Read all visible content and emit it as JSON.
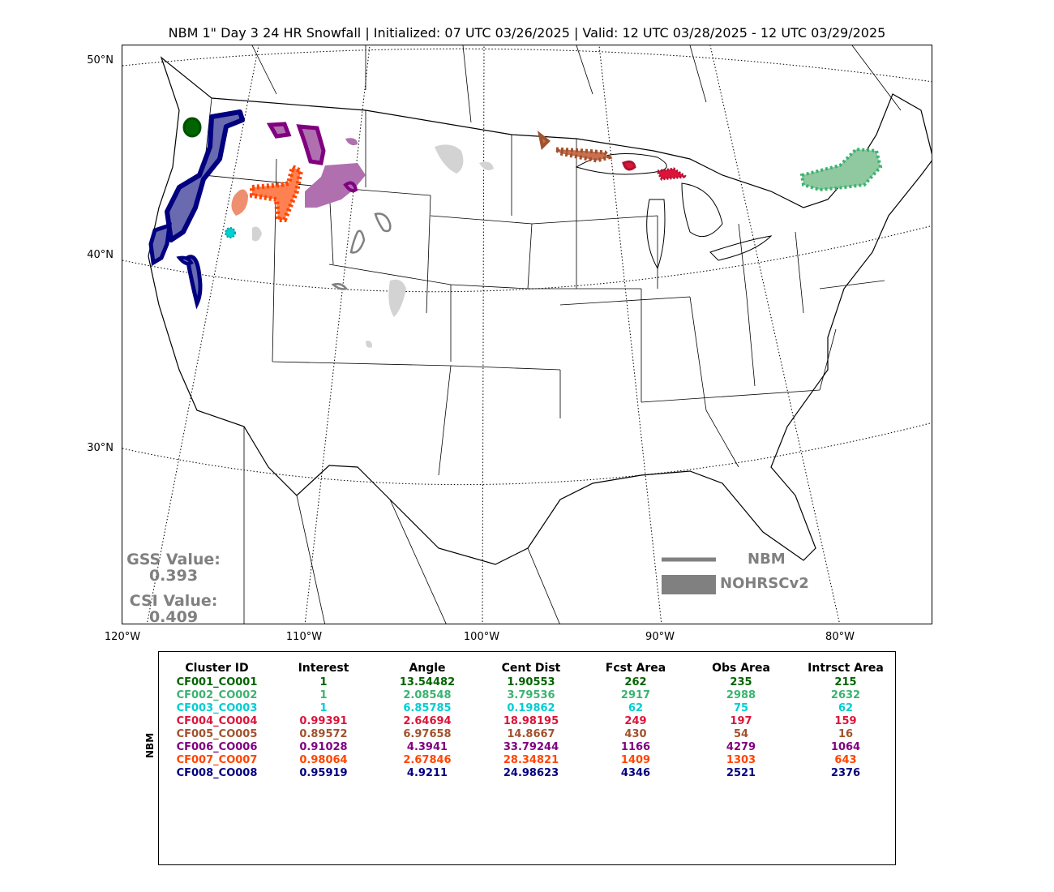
{
  "title": "NBM 1\" Day 3 24 HR Snowfall | Initialized: 07 UTC 03/26/2025 | Valid: 12 UTC 03/28/2025 - 12 UTC 03/29/2025",
  "map": {
    "lat_labels": [
      "50°N",
      "40°N",
      "30°N"
    ],
    "lon_labels": [
      "120°W",
      "110°W",
      "100°W",
      "90°W",
      "80°W"
    ],
    "gss": {
      "label": "GSS Value:",
      "value": "0.393"
    },
    "csi": {
      "label": "CSI Value:",
      "value": "0.409"
    },
    "legend": [
      {
        "label": "NBM",
        "style": "line"
      },
      {
        "label": "NOHRSCv2",
        "style": "fill"
      }
    ],
    "colors": {
      "stat_text": "#808080",
      "obs_gray": "#d3d3d3"
    }
  },
  "table": {
    "row_axis_label": "NBM",
    "columns": [
      "Cluster ID",
      "Interest",
      "Angle",
      "Cent Dist",
      "Fcst Area",
      "Obs Area",
      "Intrsct Area"
    ],
    "rows": [
      {
        "color": "#006400",
        "cells": [
          "CF001_CO001",
          "1",
          "13.54482",
          "1.90553",
          "262",
          "235",
          "215"
        ]
      },
      {
        "color": "#3cb371",
        "cells": [
          "CF002_CO002",
          "1",
          "2.08548",
          "3.79536",
          "2917",
          "2988",
          "2632"
        ]
      },
      {
        "color": "#00ced1",
        "cells": [
          "CF003_CO003",
          "1",
          "6.85785",
          "0.19862",
          "62",
          "75",
          "62"
        ]
      },
      {
        "color": "#dc143c",
        "cells": [
          "CF004_CO004",
          "0.99391",
          "2.64694",
          "18.98195",
          "249",
          "197",
          "159"
        ]
      },
      {
        "color": "#a0522d",
        "cells": [
          "CF005_CO005",
          "0.89572",
          "6.97658",
          "14.8667",
          "430",
          "54",
          "16"
        ]
      },
      {
        "color": "#800080",
        "cells": [
          "CF006_CO006",
          "0.91028",
          "4.3941",
          "33.79244",
          "1166",
          "4279",
          "1064"
        ]
      },
      {
        "color": "#ff4500",
        "cells": [
          "CF007_CO007",
          "0.98064",
          "2.67846",
          "28.34821",
          "1409",
          "1303",
          "643"
        ]
      },
      {
        "color": "#000080",
        "cells": [
          "CF008_CO008",
          "0.95919",
          "4.9211",
          "24.98623",
          "4346",
          "2521",
          "2376"
        ]
      }
    ]
  }
}
